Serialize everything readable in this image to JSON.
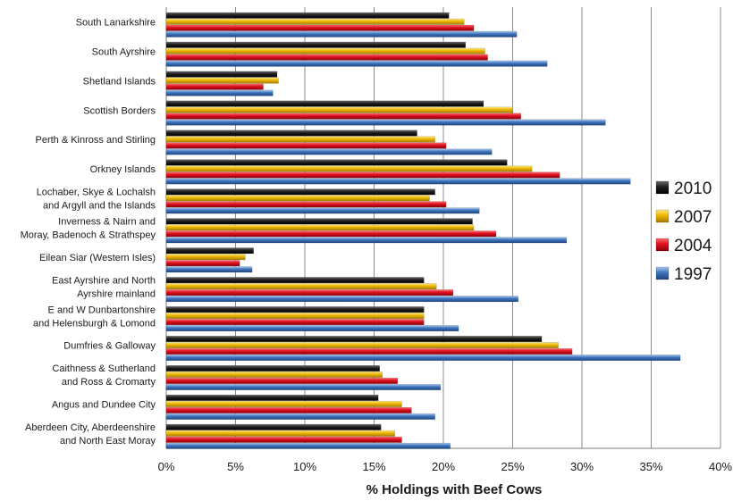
{
  "chart_data": {
    "type": "bar",
    "orientation": "horizontal",
    "xlabel": "% Holdings with Beef Cows",
    "xlim": [
      0,
      40
    ],
    "x_ticks": [
      "0%",
      "5%",
      "10%",
      "15%",
      "20%",
      "25%",
      "30%",
      "35%",
      "40%"
    ],
    "grid": true,
    "legend_position": "right",
    "categories": [
      [
        "South Lanarkshire"
      ],
      [
        "South Ayrshire"
      ],
      [
        "Shetland Islands"
      ],
      [
        "Scottish Borders"
      ],
      [
        "Perth & Kinross and Stirling"
      ],
      [
        "Orkney Islands"
      ],
      [
        "Lochaber, Skye & Lochalsh",
        "and Argyll and the Islands"
      ],
      [
        "Inverness & Nairn and",
        "Moray, Badenoch & Strathspey"
      ],
      [
        "Eilean Siar (Western Isles)"
      ],
      [
        "East Ayrshire and North",
        "Ayrshire mainland"
      ],
      [
        "E and W Dunbartonshire",
        "and Helensburgh & Lomond"
      ],
      [
        "Dumfries & Galloway"
      ],
      [
        "Caithness & Sutherland",
        "and Ross & Cromarty"
      ],
      [
        "Angus and Dundee City"
      ],
      [
        "Aberdeen City, Aberdeenshire",
        "and North East Moray"
      ]
    ],
    "series": [
      {
        "name": "2010",
        "color": "#262626",
        "values": [
          20.4,
          21.6,
          8.0,
          22.9,
          18.1,
          24.6,
          19.4,
          22.1,
          6.3,
          18.6,
          18.6,
          27.1,
          15.4,
          15.3,
          15.5
        ]
      },
      {
        "name": "2007",
        "color": "#e8b400",
        "values": [
          21.5,
          23.0,
          8.1,
          25.0,
          19.4,
          26.4,
          19.0,
          22.2,
          5.7,
          19.5,
          18.6,
          28.3,
          15.6,
          17.0,
          16.5
        ]
      },
      {
        "name": "2004",
        "color": "#d8121e",
        "values": [
          22.2,
          23.2,
          7.0,
          25.6,
          20.2,
          28.4,
          20.2,
          23.8,
          5.3,
          20.7,
          18.6,
          29.3,
          16.7,
          17.7,
          17.0
        ]
      },
      {
        "name": "1997",
        "color": "#3a6fb0",
        "values": [
          25.3,
          27.5,
          7.7,
          31.7,
          23.5,
          33.5,
          22.6,
          28.9,
          6.2,
          25.4,
          21.1,
          37.1,
          19.8,
          19.4,
          20.5
        ]
      }
    ],
    "legend_order": [
      "2010",
      "2007",
      "2004",
      "1997"
    ]
  }
}
